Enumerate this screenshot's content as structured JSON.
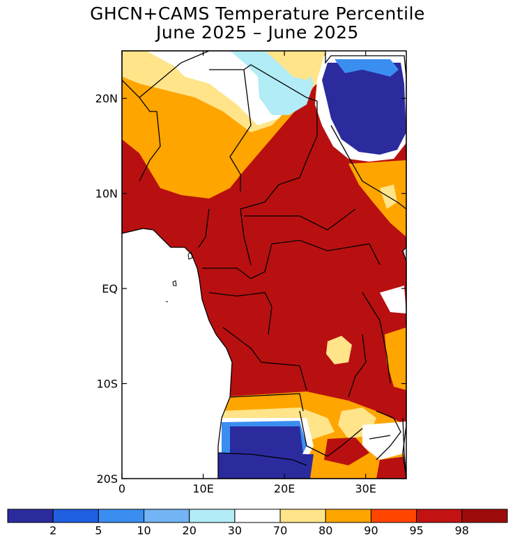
{
  "title": {
    "line1": "GHCN+CAMS Temperature Percentile",
    "line2": "June 2025 – June 2025"
  },
  "axes": {
    "y_ticks": [
      {
        "label": "20N",
        "lat": 20
      },
      {
        "label": "10N",
        "lat": 10
      },
      {
        "label": "EQ",
        "lat": 0
      },
      {
        "label": "10S",
        "lat": -10
      },
      {
        "label": "20S",
        "lat": -20
      }
    ],
    "x_ticks": [
      {
        "label": "0",
        "lon": 0
      },
      {
        "label": "10E",
        "lon": 10
      },
      {
        "label": "20E",
        "lon": 20
      },
      {
        "label": "30E",
        "lon": 30
      }
    ],
    "lon_range": [
      0,
      35
    ],
    "lat_range": [
      -20,
      25
    ]
  },
  "legend": {
    "colors": [
      "#2b2b9e",
      "#1f5fe0",
      "#3a8ef0",
      "#72b4f4",
      "#b2ecf6",
      "#ffffff",
      "#ffe48a",
      "#ffa500",
      "#ff4500",
      "#c21212",
      "#9e0b0b"
    ],
    "labels": [
      "2",
      "5",
      "10",
      "20",
      "30",
      "70",
      "80",
      "90",
      "95",
      "98"
    ]
  },
  "colors": {
    "ocean": "#ffffff",
    "land_default": "#b81010",
    "very_cold": "#2b2b9e",
    "cold": "#3a8ef0",
    "cool": "#b2ecf6",
    "warm": "#ffe48a",
    "hot": "#ffa500",
    "very_hot": "#b81010",
    "border": "#000000"
  }
}
